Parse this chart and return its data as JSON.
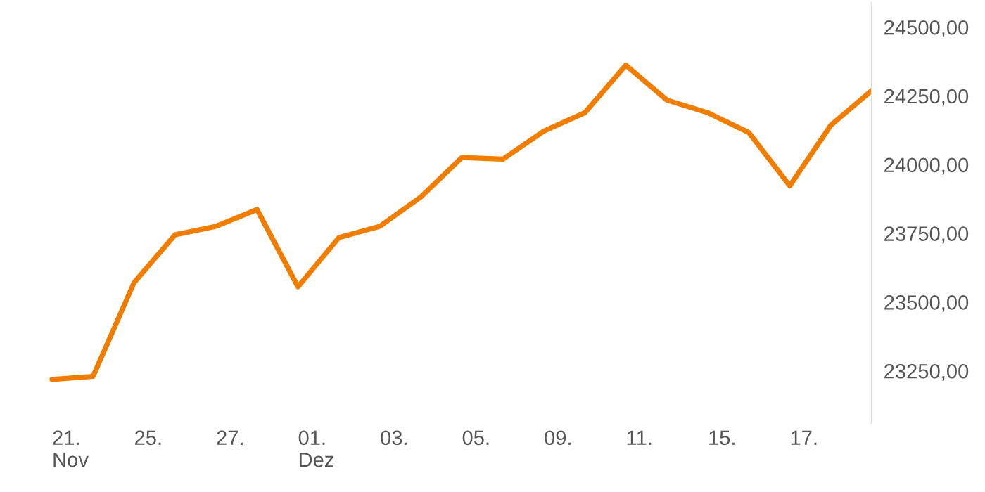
{
  "chart_data": {
    "type": "line",
    "categories": [
      "21.\nNov",
      null,
      "25.",
      null,
      "27.",
      null,
      "01.\nDez",
      null,
      "03.",
      null,
      "05.",
      null,
      "09.",
      null,
      "11.",
      null,
      "15.",
      null,
      "17.",
      null,
      null
    ],
    "series": [
      {
        "color": "#f07c00",
        "values": [
          23219,
          23230,
          23571,
          23745,
          23776,
          23837,
          23556,
          23735,
          23776,
          23883,
          24026,
          24020,
          24122,
          24189,
          24362,
          24235,
          24189,
          24117,
          23923,
          24143,
          24270
        ]
      }
    ],
    "ylim": [
      23060,
      24590
    ],
    "yticks": [
      {
        "value": 23250,
        "label": "23250,00"
      },
      {
        "value": 23500,
        "label": "23500,00"
      },
      {
        "value": 23750,
        "label": "23750,00"
      },
      {
        "value": 24000,
        "label": "24000,00"
      },
      {
        "value": 24250,
        "label": "24250,00"
      },
      {
        "value": 24500,
        "label": "24500,00"
      }
    ],
    "grid": false,
    "legend": false,
    "marker": "none",
    "line_style": "solid"
  }
}
